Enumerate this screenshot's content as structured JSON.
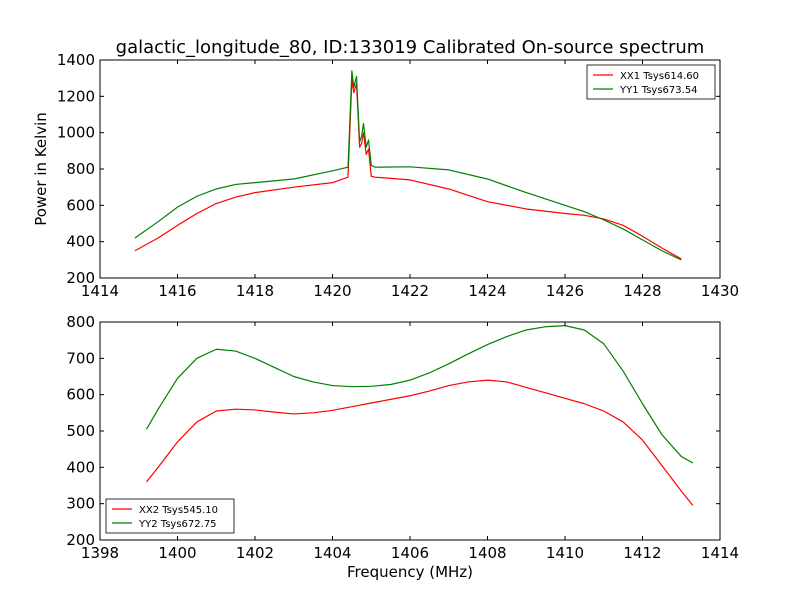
{
  "title": "galactic_longitude_80, ID:133019 Calibrated On-source spectrum",
  "colors": {
    "red": "#ff0000",
    "green": "#008000",
    "axes": "#000000",
    "background": "#ffffff"
  },
  "chart_data": [
    {
      "type": "line",
      "title": "galactic_longitude_80, ID:133019 Calibrated On-source spectrum",
      "xlabel": "",
      "ylabel": "Power in Kelvin",
      "xlim": [
        1414,
        1430
      ],
      "ylim": [
        200,
        1400
      ],
      "xticks": [
        "1414",
        "1416",
        "1418",
        "1420",
        "1422",
        "1424",
        "1426",
        "1428",
        "1430"
      ],
      "yticks": [
        "200",
        "400",
        "600",
        "800",
        "1000",
        "1200",
        "1400"
      ],
      "grid": false,
      "legend": "top-right",
      "series": [
        {
          "name": "XX1 Tsys614.60",
          "color": "#ff0000",
          "x": [
            1414.9,
            1415.5,
            1416.0,
            1416.5,
            1417.0,
            1417.5,
            1418.0,
            1419.0,
            1420.0,
            1420.4,
            1420.5,
            1420.55,
            1420.62,
            1420.7,
            1420.75,
            1420.8,
            1420.87,
            1420.93,
            1421.0,
            1421.1,
            1422.0,
            1423.0,
            1424.0,
            1425.0,
            1426.0,
            1426.5,
            1427.0,
            1427.5,
            1428.0,
            1428.5,
            1429.0
          ],
          "y": [
            350,
            420,
            490,
            555,
            610,
            645,
            670,
            700,
            725,
            755,
            1290,
            1220,
            1270,
            920,
            940,
            1000,
            880,
            910,
            760,
            755,
            740,
            690,
            620,
            580,
            555,
            545,
            525,
            490,
            430,
            365,
            305
          ]
        },
        {
          "name": "YY1 Tsys673.54",
          "color": "#008000",
          "x": [
            1414.9,
            1415.5,
            1416.0,
            1416.5,
            1417.0,
            1417.5,
            1418.0,
            1419.0,
            1420.0,
            1420.4,
            1420.5,
            1420.55,
            1420.62,
            1420.7,
            1420.75,
            1420.8,
            1420.87,
            1420.93,
            1421.0,
            1421.1,
            1422.0,
            1423.0,
            1424.0,
            1425.0,
            1426.0,
            1426.5,
            1427.0,
            1427.5,
            1428.0,
            1428.5,
            1429.0
          ],
          "y": [
            420,
            510,
            590,
            650,
            690,
            715,
            725,
            745,
            790,
            810,
            1340,
            1250,
            1310,
            950,
            980,
            1050,
            920,
            960,
            820,
            810,
            812,
            795,
            745,
            670,
            600,
            565,
            520,
            470,
            410,
            350,
            300
          ]
        }
      ]
    },
    {
      "type": "line",
      "title": "",
      "xlabel": "Frequency (MHz)",
      "ylabel": "",
      "xlim": [
        1398,
        1414
      ],
      "ylim": [
        200,
        800
      ],
      "xticks": [
        "1398",
        "1400",
        "1402",
        "1404",
        "1406",
        "1408",
        "1410",
        "1412",
        "1414"
      ],
      "yticks": [
        "200",
        "300",
        "400",
        "500",
        "600",
        "700",
        "800"
      ],
      "grid": false,
      "legend": "bottom-left",
      "series": [
        {
          "name": "XX2 Tsys545.10",
          "color": "#ff0000",
          "x": [
            1399.2,
            1399.5,
            1400.0,
            1400.5,
            1401.0,
            1401.5,
            1402.0,
            1402.5,
            1403.0,
            1403.5,
            1404.0,
            1404.5,
            1405.0,
            1405.5,
            1406.0,
            1406.5,
            1407.0,
            1407.5,
            1408.0,
            1408.5,
            1409.0,
            1409.5,
            1410.0,
            1410.5,
            1411.0,
            1411.5,
            1412.0,
            1412.5,
            1413.0,
            1413.3
          ],
          "y": [
            360,
            400,
            470,
            525,
            555,
            560,
            558,
            552,
            547,
            550,
            557,
            567,
            577,
            587,
            597,
            610,
            625,
            635,
            640,
            635,
            620,
            605,
            590,
            575,
            555,
            525,
            475,
            405,
            335,
            295
          ]
        },
        {
          "name": "YY2 Tsys672.75",
          "color": "#008000",
          "x": [
            1399.2,
            1399.5,
            1400.0,
            1400.5,
            1401.0,
            1401.5,
            1402.0,
            1402.5,
            1403.0,
            1403.5,
            1404.0,
            1404.5,
            1405.0,
            1405.5,
            1406.0,
            1406.5,
            1407.0,
            1407.5,
            1408.0,
            1408.5,
            1409.0,
            1409.5,
            1410.0,
            1410.5,
            1411.0,
            1411.5,
            1412.0,
            1412.5,
            1413.0,
            1413.3
          ],
          "y": [
            505,
            560,
            645,
            700,
            725,
            720,
            700,
            675,
            650,
            635,
            625,
            622,
            623,
            628,
            640,
            660,
            685,
            712,
            738,
            760,
            778,
            787,
            790,
            778,
            740,
            665,
            575,
            490,
            430,
            412
          ]
        }
      ]
    }
  ]
}
